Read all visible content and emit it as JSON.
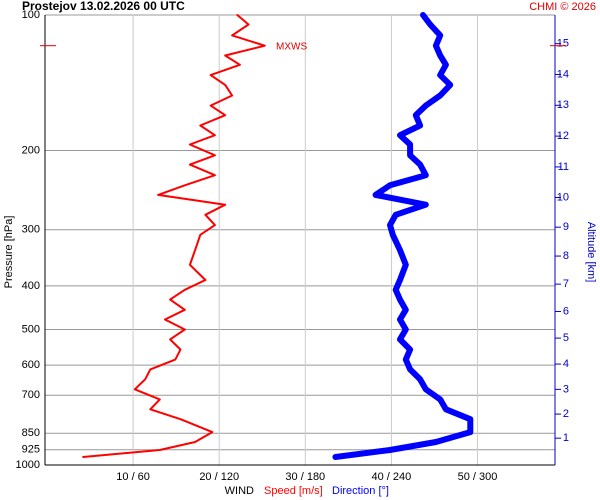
{
  "chart_data": {
    "type": "line",
    "title": "Prostejov    13.02.2026 00 UTC",
    "credit": "CHMI © 2026",
    "ylabel": "Pressure [hPa]",
    "y2label": "Altitude [km]",
    "xlabel": "WIND",
    "y_log": true,
    "ylim": [
      100,
      1000
    ],
    "yticks": [
      100,
      200,
      300,
      400,
      500,
      600,
      700,
      850,
      925,
      1000
    ],
    "xlim": [
      0,
      59
    ],
    "xticks": [
      {
        "value": 10,
        "label": "10 / 60"
      },
      {
        "value": 20,
        "label": "20 / 120"
      },
      {
        "value": 30,
        "label": "30 / 180"
      },
      {
        "value": 40,
        "label": "40 / 240"
      },
      {
        "value": 50,
        "label": "50 / 300"
      }
    ],
    "x2lim": [
      0,
      354
    ],
    "y2ticks": [
      1,
      2,
      3,
      4,
      5,
      6,
      7,
      8,
      9,
      10,
      11,
      12,
      13,
      14,
      15
    ],
    "grid": true,
    "annotation": {
      "text": "MXWS",
      "value": 117
    },
    "y": [
      100,
      105,
      111,
      117,
      123,
      129,
      136,
      143,
      151,
      159,
      167,
      176,
      185,
      194,
      205,
      215,
      227,
      239,
      251,
      264,
      278,
      293,
      308,
      333,
      359,
      388,
      408,
      429,
      452,
      475,
      500,
      526,
      554,
      583,
      613,
      645,
      679,
      715,
      752,
      791,
      845,
      889,
      926,
      960
    ],
    "series": [
      {
        "name": "Speed [m/s]",
        "color": "#ff0000",
        "axis": "x",
        "values": [
          22.1,
          23.4,
          21.5,
          25.3,
          20.7,
          22.4,
          19.0,
          20.7,
          21.5,
          19.0,
          20.7,
          17.8,
          19.5,
          16.6,
          19.5,
          16.6,
          19.5,
          16.0,
          12.9,
          20.7,
          18.4,
          19.5,
          17.8,
          17.2,
          16.6,
          18.4,
          16.0,
          14.3,
          16.0,
          13.7,
          16.0,
          14.3,
          15.5,
          14.9,
          12.0,
          11.4,
          10.2,
          13.1,
          12.0,
          15.5,
          19.2,
          17.2,
          13.1,
          4.2
        ]
      },
      {
        "name": "Direction [°]",
        "color": "#0000ff",
        "axis": "x2",
        "values": [
          262,
          267,
          274,
          271,
          274,
          278,
          274,
          281,
          274,
          264,
          257,
          260,
          246,
          253,
          253,
          260,
          264,
          239,
          229,
          264,
          243,
          239,
          241,
          246,
          250,
          246,
          243,
          246,
          250,
          246,
          250,
          246,
          253,
          250,
          253,
          260,
          264,
          274,
          278,
          295,
          295,
          271,
          239,
          201
        ]
      }
    ]
  }
}
